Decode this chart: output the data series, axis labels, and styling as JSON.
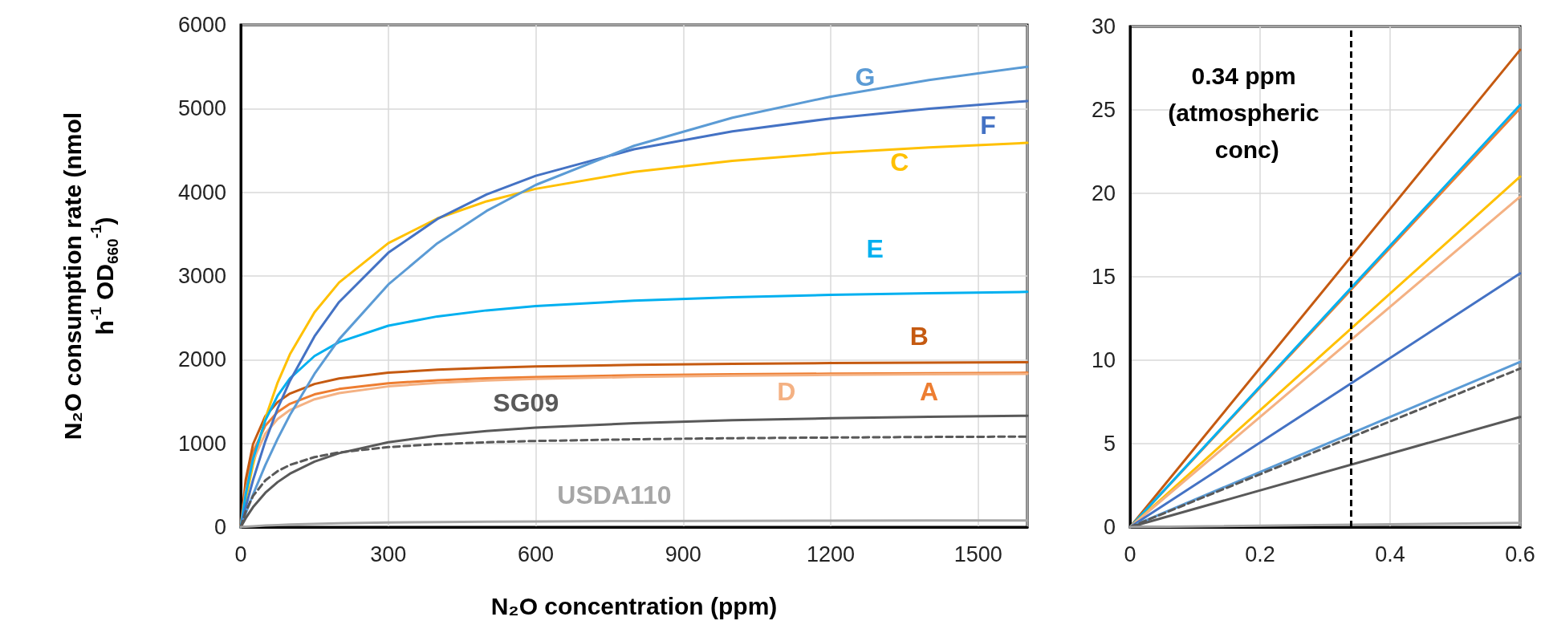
{
  "chart_data": [
    {
      "type": "line",
      "xlabel": "N₂O concentration (ppm)",
      "ylabel": "N₂O consumption rate (nmol h$^{-1}$ OD$_{660}$$^{-1}$)",
      "x": [
        0,
        10,
        25,
        50,
        75,
        100,
        150,
        200,
        300,
        400,
        500,
        600,
        800,
        1000,
        1200,
        1400,
        1600
      ],
      "series": [
        {
          "name": "A",
          "color": "#ed7d31",
          "values": [
            0,
            503,
            896,
            1213,
            1375,
            1473,
            1586,
            1650,
            1719,
            1755,
            1778,
            1793,
            1813,
            1825,
            1833,
            1839,
            1844
          ]
        },
        {
          "name": "B",
          "color": "#c55a11",
          "values": [
            0,
            565,
            992,
            1326,
            1494,
            1595,
            1710,
            1775,
            1844,
            1881,
            1903,
            1919,
            1938,
            1950,
            1959,
            1964,
            1969
          ]
        },
        {
          "name": "C",
          "color": "#ffc000",
          "values": [
            0,
            329,
            748,
            1301,
            1727,
            2065,
            2567,
            2922,
            3392,
            3688,
            3892,
            4041,
            4244,
            4376,
            4468,
            4537,
            4590
          ]
        },
        {
          "name": "D",
          "color": "#f4b183",
          "values": [
            0,
            429,
            797,
            1118,
            1291,
            1399,
            1527,
            1600,
            1681,
            1724,
            1751,
            1770,
            1794,
            1808,
            1818,
            1825,
            1830
          ]
        },
        {
          "name": "E",
          "color": "#00b0f0",
          "values": [
            0,
            392,
            816,
            1276,
            1571,
            1777,
            2044,
            2210,
            2406,
            2517,
            2589,
            2640,
            2705,
            2746,
            2774,
            2794,
            2810
          ]
        },
        {
          "name": "F",
          "color": "#4472c4",
          "values": [
            0,
            239,
            563,
            1027,
            1416,
            1747,
            2279,
            2689,
            3277,
            3681,
            3974,
            4197,
            4514,
            4728,
            4882,
            4999,
            5090
          ]
        },
        {
          "name": "G",
          "color": "#5b9bd5",
          "values": [
            0,
            162,
            391,
            741,
            1055,
            1339,
            1831,
            2244,
            2898,
            3391,
            3777,
            4088,
            4555,
            4890,
            5143,
            5341,
            5499
          ]
        },
        {
          "name": "SG09",
          "color": "#595959",
          "values": [
            0,
            106,
            239,
            410,
            538,
            638,
            783,
            883,
            1013,
            1093,
            1148,
            1188,
            1241,
            1276,
            1300,
            1317,
            1331
          ]
        },
        {
          "color": "#595959",
          "line_style": "dashed",
          "values": [
            0,
            186,
            372,
            558,
            669,
            743,
            836,
            892,
            956,
            991,
            1014,
            1029,
            1049,
            1062,
            1070,
            1077,
            1081
          ]
        },
        {
          "name": "USDA110",
          "color": "#a6a6a6",
          "values": [
            0,
            4,
            10,
            18,
            25,
            30,
            39,
            45,
            54,
            60,
            64,
            68,
            72,
            75,
            77,
            79,
            80
          ]
        }
      ],
      "xlim": [
        0,
        1600
      ],
      "xticks": [
        0,
        300,
        600,
        900,
        1200,
        1500
      ],
      "ylim": [
        0,
        6000
      ],
      "yticks": [
        0,
        1000,
        2000,
        3000,
        4000,
        5000,
        6000
      ],
      "grid": true,
      "legend": false,
      "marker": "none",
      "line_style": "solid"
    },
    {
      "type": "line",
      "x": [
        0,
        0.6
      ],
      "series": [
        {
          "color": "#c55a11",
          "values": [
            0,
            28.6
          ]
        },
        {
          "color": "#ed7d31",
          "values": [
            0,
            25.1
          ]
        },
        {
          "color": "#00b0f0",
          "values": [
            0,
            25.3
          ]
        },
        {
          "color": "#ffc000",
          "values": [
            0,
            21
          ]
        },
        {
          "color": "#f4b183",
          "values": [
            0,
            19.8
          ]
        },
        {
          "color": "#4472c4",
          "values": [
            0,
            15.2
          ]
        },
        {
          "color": "#5b9bd5",
          "values": [
            0,
            9.9
          ]
        },
        {
          "color": "#595959",
          "line_style": "dashed",
          "values": [
            0,
            9.5
          ]
        },
        {
          "color": "#595959",
          "values": [
            0,
            6.6
          ]
        },
        {
          "color": "#a6a6a6",
          "values": [
            0,
            0.25
          ]
        }
      ],
      "xlim": [
        0,
        0.6
      ],
      "xticks": [
        0,
        0.2,
        0.4,
        0.6
      ],
      "ylim": [
        0,
        30
      ],
      "yticks": [
        0,
        5,
        10,
        15,
        20,
        25,
        30
      ],
      "grid": true,
      "legend": false,
      "marker": "none",
      "line_style": "solid",
      "ref_lines": [
        {
          "axis": "x",
          "value": 0.34,
          "label": "0.34 ppm (atmospheric conc)",
          "color": "#000000",
          "line_style": "dashed"
        }
      ]
    }
  ]
}
